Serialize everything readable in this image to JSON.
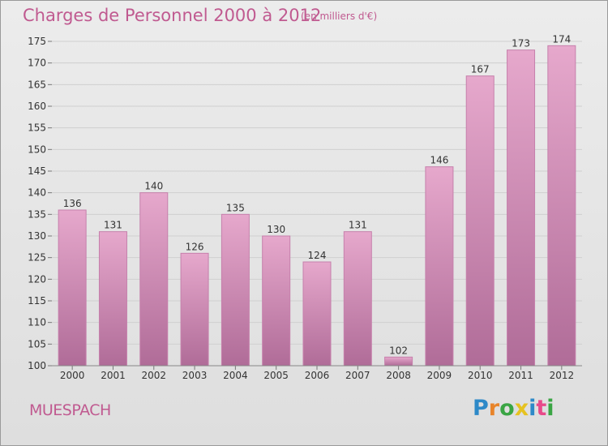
{
  "header": {
    "title": "Charges de Personnel 2000 à 2012",
    "subtitle": "(en milliers d'€)"
  },
  "footer": {
    "commune": "MUESPACH",
    "logo_text": "Proxiti",
    "logo_colors": [
      "#2d89c8",
      "#e8842a",
      "#3aa544",
      "#e6c220",
      "#2d89c8",
      "#e84a8a",
      "#3aa544"
    ]
  },
  "colors": {
    "bar_top": "#e6a8cc",
    "bar_bottom": "#b06c98",
    "bar_edge": "#c680ac",
    "accent": "#c05a90"
  },
  "chart_data": {
    "type": "bar",
    "title": "Charges de Personnel 2000 à 2012",
    "subtitle": "(en milliers d'€)",
    "categories": [
      "2000",
      "2001",
      "2002",
      "2003",
      "2004",
      "2005",
      "2006",
      "2007",
      "2008",
      "2009",
      "2010",
      "2011",
      "2012"
    ],
    "values": [
      136,
      131,
      140,
      126,
      135,
      130,
      124,
      131,
      102,
      146,
      167,
      173,
      174
    ],
    "ylim": [
      100,
      175
    ],
    "yticks": [
      100,
      105,
      110,
      115,
      120,
      125,
      130,
      135,
      140,
      145,
      150,
      155,
      160,
      165,
      170,
      175
    ],
    "grid": true,
    "data_labels": true
  }
}
